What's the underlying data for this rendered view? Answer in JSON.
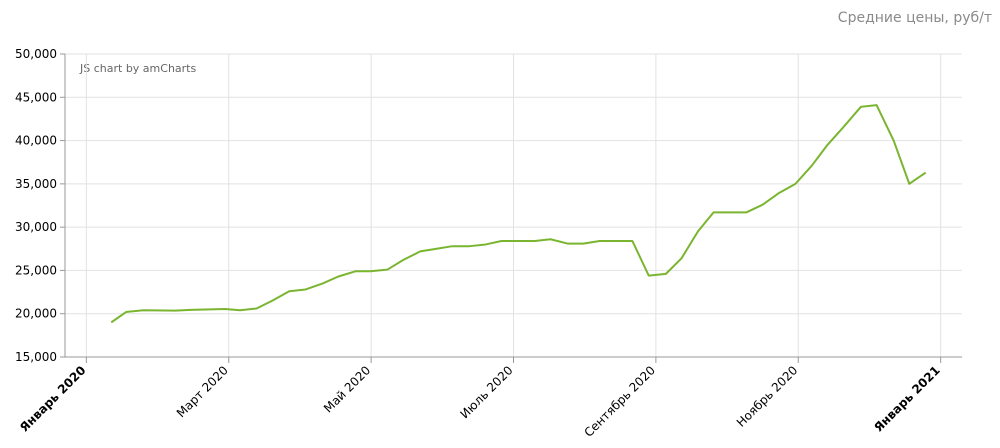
{
  "chart_data": {
    "type": "line",
    "title": "Средние цены, руб/т",
    "credit": "JS chart by amCharts",
    "x": [
      0.35,
      0.56,
      0.8,
      1.25,
      1.46,
      1.95,
      2.16,
      2.39,
      2.61,
      2.85,
      3.08,
      3.32,
      3.54,
      3.78,
      3.99,
      4.23,
      4.45,
      4.69,
      4.92,
      5.14,
      5.38,
      5.61,
      5.83,
      6.3,
      6.52,
      6.76,
      6.98,
      7.21,
      7.67,
      7.9,
      8.14,
      8.36,
      8.59,
      8.81,
      9.27,
      9.5,
      9.72,
      9.96,
      10.19,
      10.41,
      10.65,
      10.88,
      11.1,
      11.34,
      11.56,
      11.79
    ],
    "series": [
      {
        "name": "Средние цены",
        "color": "#7ab530",
        "values": [
          19000,
          20200,
          20400,
          20350,
          20450,
          20550,
          20400,
          20600,
          21500,
          22600,
          22800,
          23500,
          24300,
          24900,
          24900,
          25100,
          26200,
          27200,
          27500,
          27800,
          27800,
          28000,
          28400,
          28400,
          28600,
          28100,
          28100,
          28400,
          28400,
          24400,
          24600,
          26400,
          29500,
          31700,
          31700,
          32600,
          33900,
          35000,
          37100,
          39500,
          41700,
          43900,
          44100,
          40000,
          35000,
          36300
        ]
      }
    ],
    "xlim": [
      -0.3,
      12.3
    ],
    "xticks": [
      {
        "value": 0,
        "label": "Январь 2020"
      },
      {
        "value": 2,
        "label": "Март 2020"
      },
      {
        "value": 4,
        "label": "Май 2020"
      },
      {
        "value": 6,
        "label": "Июль 2020"
      },
      {
        "value": 8,
        "label": "Сентябрь 2020"
      },
      {
        "value": 10,
        "label": "Ноябрь 2020"
      },
      {
        "value": 12,
        "label": "Январь 2021"
      }
    ],
    "ylim": [
      15000,
      50000
    ],
    "yticks": [
      {
        "value": 15000,
        "label": "15,000"
      },
      {
        "value": 20000,
        "label": "20,000"
      },
      {
        "value": 25000,
        "label": "25,000"
      },
      {
        "value": 30000,
        "label": "30,000"
      },
      {
        "value": 35000,
        "label": "35,000"
      },
      {
        "value": 40000,
        "label": "40,000"
      },
      {
        "value": 45000,
        "label": "45,000"
      },
      {
        "value": 50000,
        "label": "50,000"
      }
    ],
    "grid": true
  }
}
